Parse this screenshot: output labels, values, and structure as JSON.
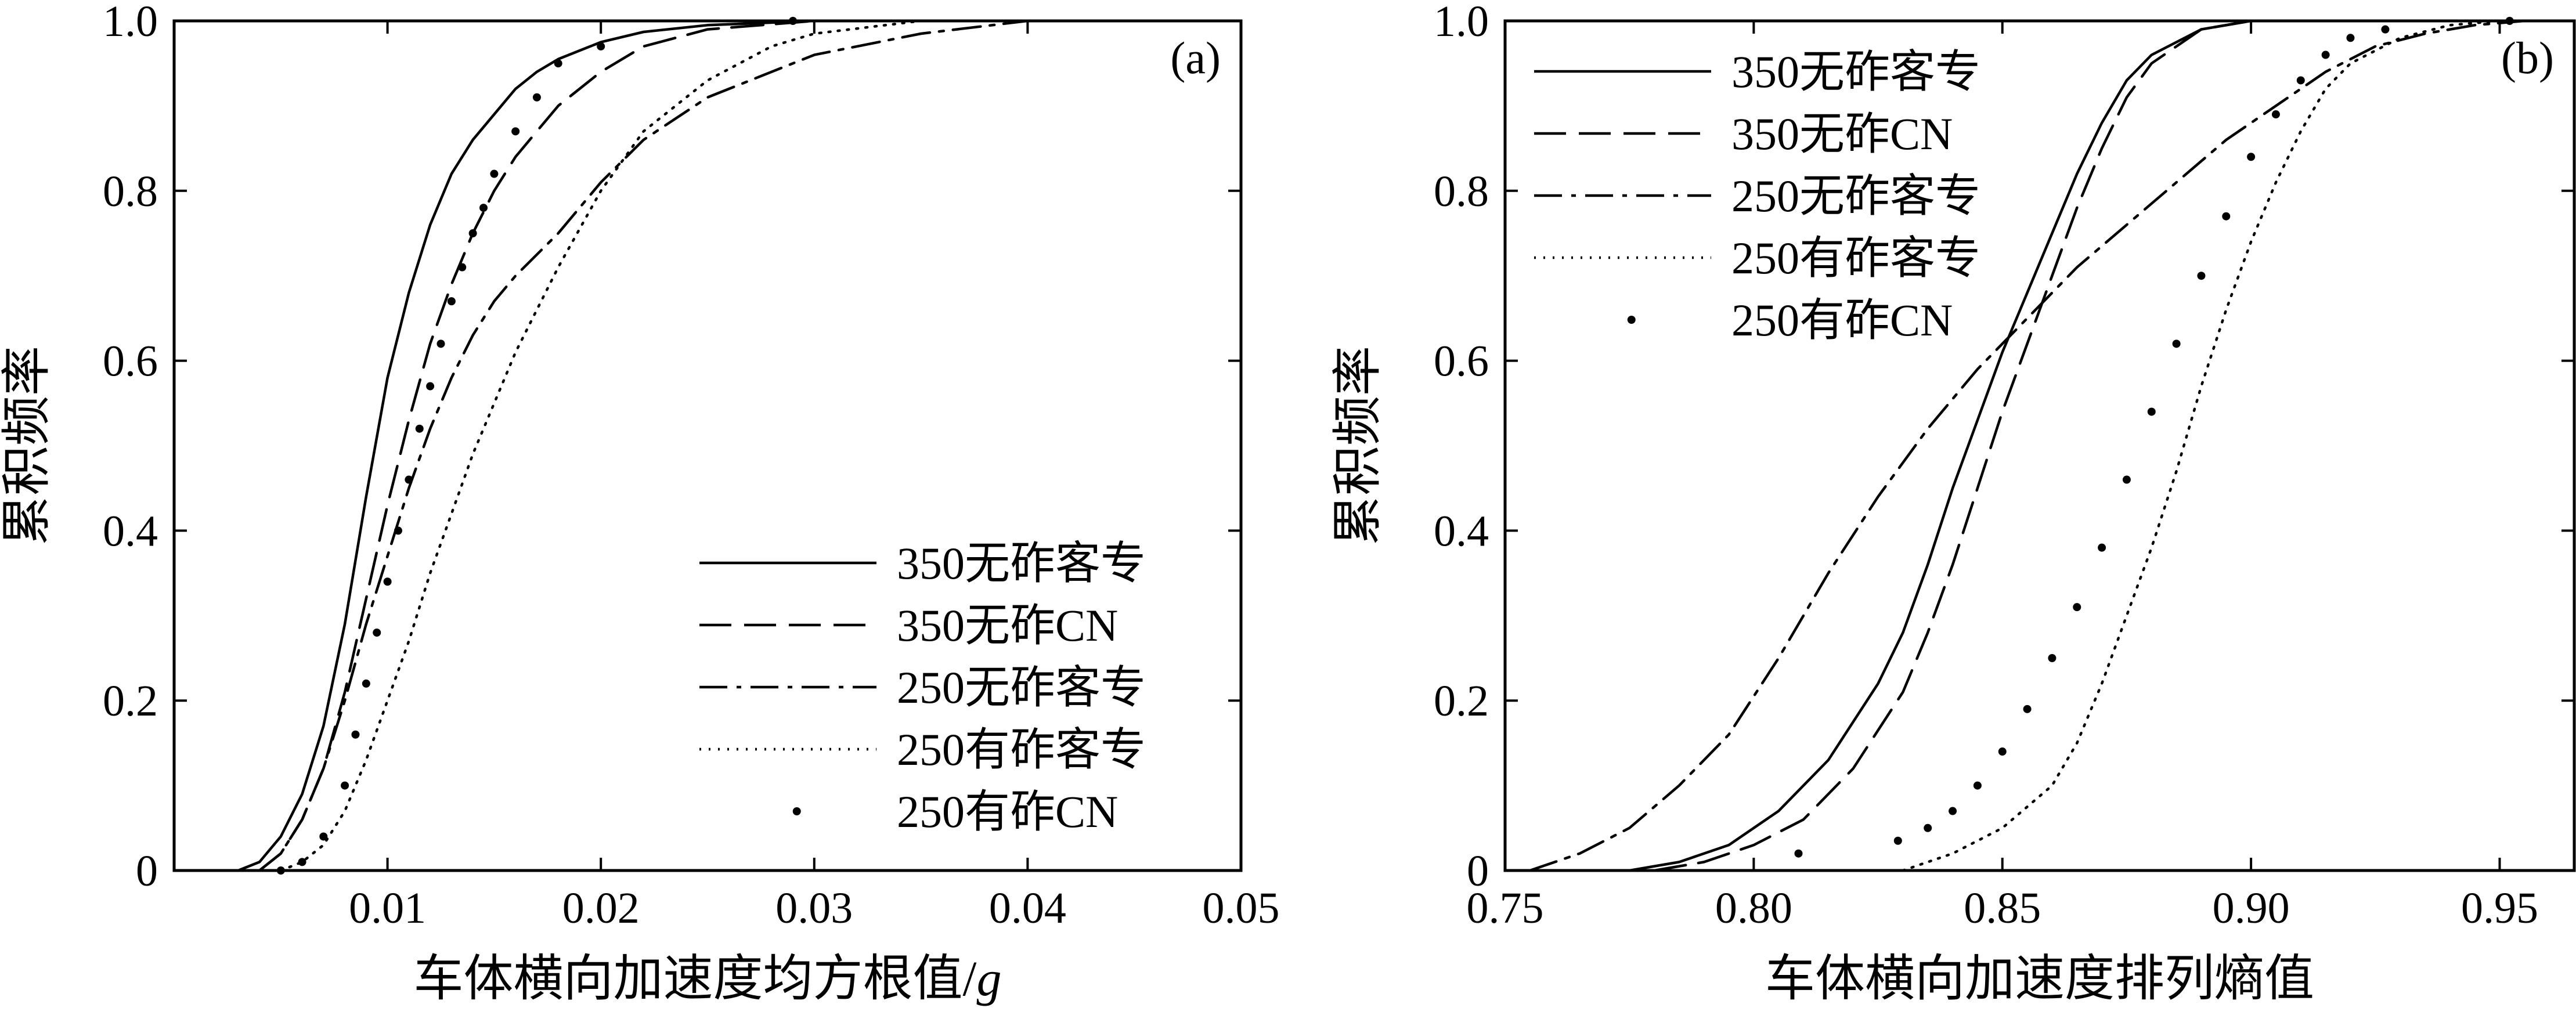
{
  "chart_data": [
    {
      "type": "line",
      "panel": "(a)",
      "xlabel": "车体横向加速度均方根值/g",
      "ylabel": "累积频率",
      "xlim": [
        0,
        0.05
      ],
      "ylim": [
        0,
        1.0
      ],
      "xticks": [
        "0.01",
        "0.02",
        "0.03",
        "0.04",
        "0.05"
      ],
      "yticks": [
        "0",
        "0.2",
        "0.4",
        "0.6",
        "0.8",
        "1.0"
      ],
      "legend_position": "bottom-right",
      "grid": false,
      "series": [
        {
          "name": "350无砟客专",
          "style": "solid",
          "x": [
            0.003,
            0.004,
            0.005,
            0.006,
            0.007,
            0.008,
            0.009,
            0.01,
            0.011,
            0.012,
            0.013,
            0.014,
            0.015,
            0.016,
            0.017,
            0.018,
            0.02,
            0.022,
            0.025,
            0.03,
            0.035
          ],
          "y": [
            0.0,
            0.01,
            0.04,
            0.09,
            0.17,
            0.29,
            0.44,
            0.58,
            0.68,
            0.76,
            0.82,
            0.86,
            0.89,
            0.92,
            0.94,
            0.955,
            0.975,
            0.987,
            0.995,
            1.0,
            1.0
          ]
        },
        {
          "name": "350无砟CN",
          "style": "dashed",
          "x": [
            0.004,
            0.005,
            0.006,
            0.007,
            0.008,
            0.009,
            0.01,
            0.011,
            0.012,
            0.013,
            0.014,
            0.015,
            0.016,
            0.017,
            0.018,
            0.02,
            0.022,
            0.025,
            0.03
          ],
          "y": [
            0.0,
            0.02,
            0.06,
            0.12,
            0.21,
            0.32,
            0.43,
            0.53,
            0.62,
            0.69,
            0.75,
            0.8,
            0.84,
            0.87,
            0.9,
            0.94,
            0.97,
            0.99,
            1.0
          ]
        },
        {
          "name": "250无砟客专",
          "style": "dashdot",
          "x": [
            0.004,
            0.005,
            0.006,
            0.007,
            0.008,
            0.009,
            0.01,
            0.011,
            0.012,
            0.013,
            0.014,
            0.015,
            0.016,
            0.018,
            0.02,
            0.022,
            0.025,
            0.028,
            0.03,
            0.035,
            0.04,
            0.045
          ],
          "y": [
            0.0,
            0.02,
            0.06,
            0.12,
            0.2,
            0.29,
            0.37,
            0.45,
            0.52,
            0.58,
            0.63,
            0.67,
            0.7,
            0.75,
            0.81,
            0.86,
            0.91,
            0.94,
            0.96,
            0.985,
            1.0,
            1.0
          ]
        },
        {
          "name": "250有砟客专",
          "style": "dotted",
          "x": [
            0.005,
            0.006,
            0.007,
            0.008,
            0.009,
            0.01,
            0.011,
            0.012,
            0.013,
            0.014,
            0.015,
            0.016,
            0.017,
            0.018,
            0.02,
            0.022,
            0.025,
            0.028,
            0.03,
            0.035
          ],
          "y": [
            0.0,
            0.01,
            0.03,
            0.07,
            0.13,
            0.2,
            0.27,
            0.35,
            0.42,
            0.49,
            0.55,
            0.61,
            0.66,
            0.71,
            0.8,
            0.87,
            0.93,
            0.97,
            0.985,
            1.0
          ]
        },
        {
          "name": "250有砟CN",
          "style": "points",
          "x": [
            0.005,
            0.006,
            0.007,
            0.008,
            0.0085,
            0.009,
            0.0095,
            0.01,
            0.0105,
            0.011,
            0.0115,
            0.012,
            0.0125,
            0.013,
            0.0135,
            0.014,
            0.0145,
            0.015,
            0.016,
            0.017,
            0.018,
            0.02,
            0.029
          ],
          "y": [
            0.0,
            0.01,
            0.04,
            0.1,
            0.16,
            0.22,
            0.28,
            0.34,
            0.4,
            0.46,
            0.52,
            0.57,
            0.62,
            0.67,
            0.71,
            0.75,
            0.78,
            0.82,
            0.87,
            0.91,
            0.95,
            0.97,
            1.0
          ]
        }
      ]
    },
    {
      "type": "line",
      "panel": "(b)",
      "xlabel": "车体横向加速度排列熵值",
      "ylabel": "累积频率",
      "xlim": [
        0.75,
        0.965
      ],
      "ylim": [
        0,
        1.0
      ],
      "xticks": [
        "0.75",
        "0.80",
        "0.85",
        "0.90",
        "0.95"
      ],
      "yticks": [
        "0",
        "0.2",
        "0.4",
        "0.6",
        "0.8",
        "1.0"
      ],
      "legend_position": "top-left",
      "grid": false,
      "series": [
        {
          "name": "350无砟客专",
          "style": "solid",
          "x": [
            0.775,
            0.785,
            0.795,
            0.805,
            0.815,
            0.825,
            0.83,
            0.835,
            0.84,
            0.845,
            0.85,
            0.855,
            0.86,
            0.865,
            0.87,
            0.875,
            0.88,
            0.89,
            0.9,
            0.91
          ],
          "y": [
            0.0,
            0.01,
            0.03,
            0.07,
            0.13,
            0.22,
            0.28,
            0.36,
            0.45,
            0.53,
            0.61,
            0.68,
            0.75,
            0.82,
            0.88,
            0.93,
            0.96,
            0.99,
            1.0,
            1.0
          ]
        },
        {
          "name": "350无砟CN",
          "style": "dashed",
          "x": [
            0.78,
            0.79,
            0.8,
            0.81,
            0.82,
            0.83,
            0.835,
            0.84,
            0.845,
            0.85,
            0.855,
            0.86,
            0.865,
            0.87,
            0.875,
            0.88,
            0.89,
            0.9,
            0.91
          ],
          "y": [
            0.0,
            0.01,
            0.03,
            0.06,
            0.12,
            0.21,
            0.28,
            0.36,
            0.45,
            0.54,
            0.62,
            0.7,
            0.78,
            0.85,
            0.91,
            0.95,
            0.99,
            1.0,
            1.0
          ]
        },
        {
          "name": "250无砟客专",
          "style": "dashdot",
          "x": [
            0.755,
            0.765,
            0.775,
            0.785,
            0.795,
            0.805,
            0.815,
            0.825,
            0.835,
            0.845,
            0.855,
            0.865,
            0.875,
            0.885,
            0.895,
            0.905,
            0.915,
            0.925,
            0.935,
            0.945,
            0.955
          ],
          "y": [
            0.0,
            0.02,
            0.05,
            0.1,
            0.16,
            0.25,
            0.35,
            0.44,
            0.52,
            0.59,
            0.65,
            0.71,
            0.76,
            0.81,
            0.86,
            0.9,
            0.94,
            0.97,
            0.985,
            0.995,
            1.0
          ]
        },
        {
          "name": "250有砟客专",
          "style": "dotted",
          "x": [
            0.83,
            0.84,
            0.85,
            0.86,
            0.865,
            0.87,
            0.875,
            0.88,
            0.885,
            0.89,
            0.895,
            0.9,
            0.905,
            0.91,
            0.915,
            0.92,
            0.93,
            0.94,
            0.95
          ],
          "y": [
            0.0,
            0.02,
            0.05,
            0.1,
            0.15,
            0.22,
            0.3,
            0.38,
            0.47,
            0.57,
            0.66,
            0.74,
            0.81,
            0.87,
            0.92,
            0.95,
            0.98,
            0.995,
            1.0
          ]
        },
        {
          "name": "250有砟CN",
          "style": "points",
          "x": [
            0.809,
            0.829,
            0.835,
            0.84,
            0.845,
            0.85,
            0.855,
            0.86,
            0.865,
            0.87,
            0.875,
            0.88,
            0.885,
            0.89,
            0.895,
            0.9,
            0.905,
            0.91,
            0.915,
            0.92,
            0.927,
            0.952
          ],
          "y": [
            0.02,
            0.035,
            0.05,
            0.07,
            0.1,
            0.14,
            0.19,
            0.25,
            0.31,
            0.38,
            0.46,
            0.54,
            0.62,
            0.7,
            0.77,
            0.84,
            0.89,
            0.93,
            0.96,
            0.98,
            0.99,
            1.0
          ]
        }
      ]
    }
  ]
}
